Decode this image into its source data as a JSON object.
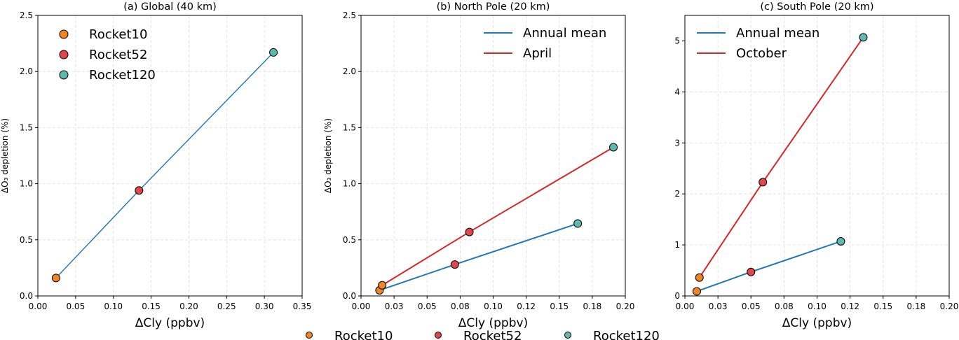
{
  "colors": {
    "Rocket10": "#f28522",
    "Rocket52": "#e0474c",
    "Rocket120": "#5fb8b0",
    "annual": "#1f77b4",
    "seasonal": "#d62728",
    "grid": "#dddddd"
  },
  "figure_legend": [
    "Rocket10",
    "Rocket52",
    "Rocket120"
  ],
  "chart_data": [
    {
      "type": "line",
      "title": "(a) Global (40 km)",
      "xlabel": "ΔCly (ppbv)",
      "ylabel": "ΔO₃ depletion (%)",
      "xlim": [
        0,
        0.35
      ],
      "ylim": [
        0,
        2.5
      ],
      "xticks": [
        0.0,
        0.05,
        0.1,
        0.15,
        0.2,
        0.25,
        0.3,
        0.35
      ],
      "xtick_labels": [
        "0.00",
        "0.05",
        "0.10",
        "0.15",
        "0.20",
        "0.25",
        "0.30",
        "0.35"
      ],
      "yticks": [
        0,
        0.5,
        1.0,
        1.5,
        2.0,
        2.5
      ],
      "ytick_labels": [
        "0.0",
        "0.5",
        "1.0",
        "1.5",
        "2.0",
        "2.5"
      ],
      "grid": true,
      "legend_placement": "upper-left",
      "legend_kind": "markers",
      "legend": [
        "Rocket10",
        "Rocket52",
        "Rocket120"
      ],
      "series": [
        {
          "color_key": "annual",
          "x": [
            0.024,
            0.134,
            0.312
          ],
          "y": [
            0.16,
            0.94,
            2.17
          ],
          "points": [
            "Rocket10",
            "Rocket52",
            "Rocket120"
          ]
        }
      ]
    },
    {
      "type": "line",
      "title": "(b) North Pole (20 km)",
      "xlabel": "ΔCly (ppbv)",
      "ylabel": "ΔO₃ depletion (%)",
      "xlim": [
        0,
        0.2
      ],
      "ylim": [
        0,
        2.5
      ],
      "xticks": [
        0.0,
        0.025,
        0.05,
        0.075,
        0.1,
        0.125,
        0.15,
        0.175,
        0.2
      ],
      "xtick_labels": [
        "0.00",
        "0.03",
        "0.05",
        "0.08",
        "0.10",
        "0.12",
        "0.15",
        "0.18",
        "0.20"
      ],
      "yticks": [
        0,
        0.5,
        1.0,
        1.5,
        2.0,
        2.5
      ],
      "ytick_labels": [
        "0.0",
        "0.5",
        "1.0",
        "1.5",
        "2.0",
        "2.5"
      ],
      "grid": true,
      "legend_placement": "upper-right",
      "legend_kind": "lines",
      "series": [
        {
          "name": "Annual mean",
          "color_key": "annual",
          "x": [
            0.014,
            0.071,
            0.164
          ],
          "y": [
            0.05,
            0.28,
            0.645
          ],
          "points": [
            "Rocket10",
            "Rocket52",
            "Rocket120"
          ]
        },
        {
          "name": "April",
          "color_key": "seasonal",
          "x": [
            0.016,
            0.082,
            0.191
          ],
          "y": [
            0.095,
            0.57,
            1.325
          ],
          "points": [
            "Rocket10",
            "Rocket52",
            "Rocket120"
          ]
        }
      ]
    },
    {
      "type": "line",
      "title": "(c) South Pole (20 km)",
      "xlabel": "ΔCly (ppbv)",
      "ylabel": "",
      "xlim": [
        0,
        0.2
      ],
      "ylim": [
        0,
        5.5
      ],
      "xticks": [
        0.0,
        0.025,
        0.05,
        0.075,
        0.1,
        0.125,
        0.15,
        0.175,
        0.2
      ],
      "xtick_labels": [
        "0.00",
        "0.03",
        "0.05",
        "0.08",
        "0.10",
        "0.12",
        "0.15",
        "0.18",
        "0.20"
      ],
      "yticks": [
        0,
        1,
        2,
        3,
        4,
        5
      ],
      "ytick_labels": [
        "0",
        "1",
        "2",
        "3",
        "4",
        "5"
      ],
      "grid": true,
      "legend_placement": "upper-left",
      "legend_kind": "lines",
      "series": [
        {
          "name": "Annual mean",
          "color_key": "annual",
          "x": [
            0.009,
            0.05,
            0.118
          ],
          "y": [
            0.09,
            0.47,
            1.07
          ],
          "points": [
            "Rocket10",
            "Rocket52",
            "Rocket120"
          ]
        },
        {
          "name": "October",
          "color_key": "seasonal",
          "x": [
            0.011,
            0.059,
            0.135
          ],
          "y": [
            0.36,
            2.23,
            5.07
          ],
          "points": [
            "Rocket10",
            "Rocket52",
            "Rocket120"
          ]
        }
      ]
    }
  ]
}
